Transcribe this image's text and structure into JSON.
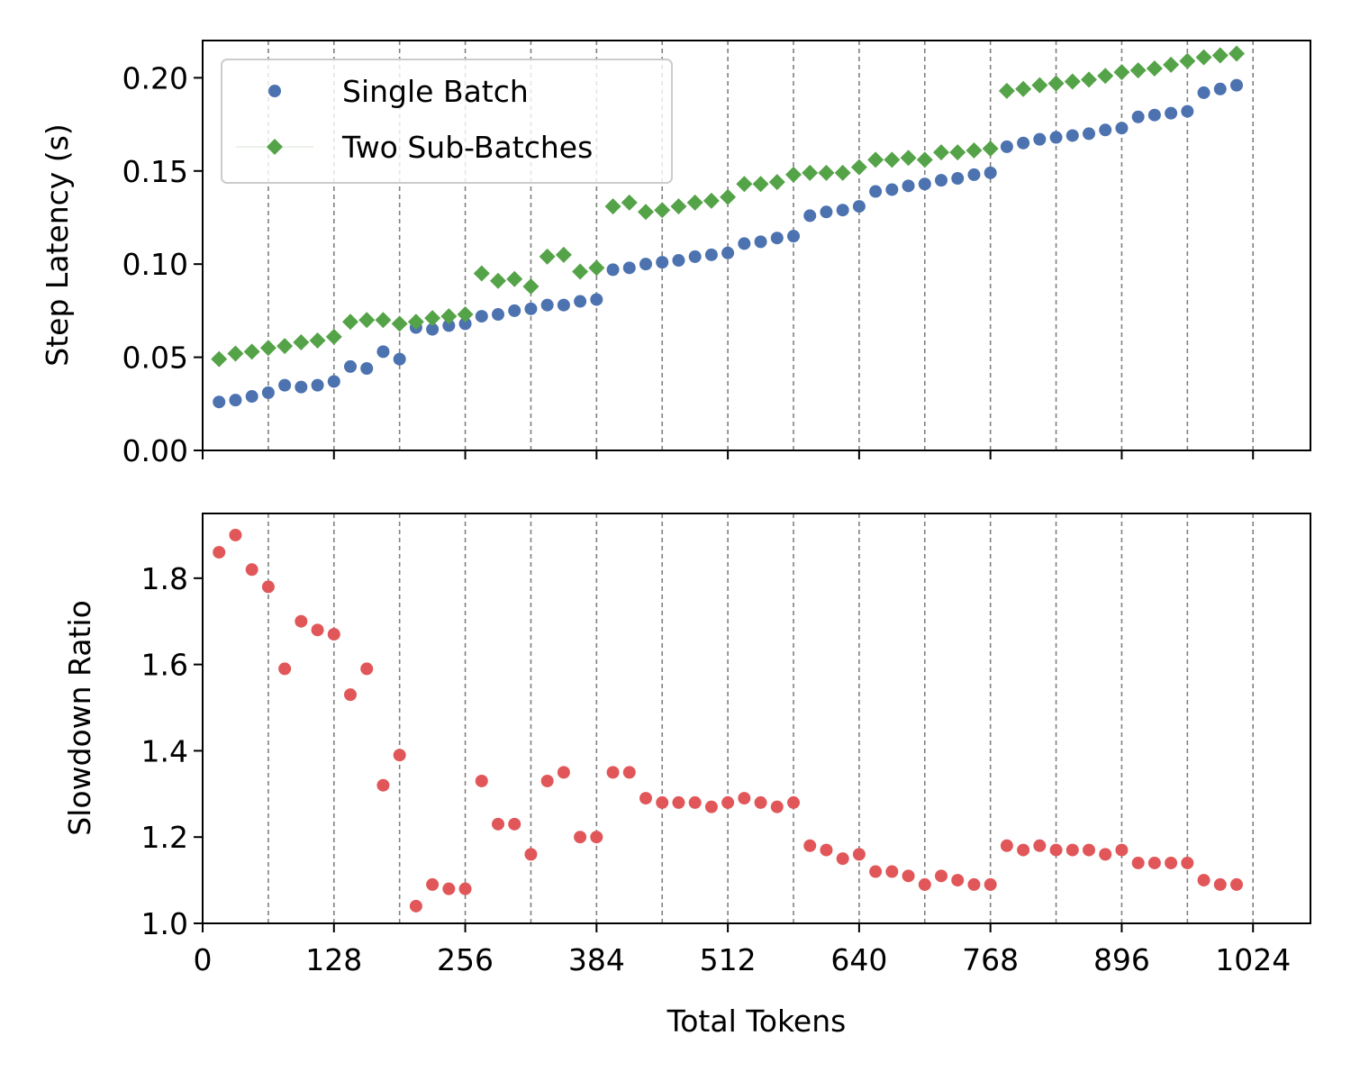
{
  "colors": {
    "single": "#4c72b0",
    "two": "#55a348",
    "ratio": "#e15759",
    "grid": "#808080",
    "legend_border": "#cccccc"
  },
  "chart_data": [
    {
      "type": "scatter",
      "ylabel": "Step Latency (s)",
      "ylim": [
        0,
        0.22
      ],
      "yticks": [
        "0.00",
        "0.05",
        "0.10",
        "0.15",
        "0.20"
      ],
      "xlim": [
        0,
        1080
      ],
      "grid": "vertical dashed lines every 64 tokens",
      "legend": {
        "placement": "upper-left",
        "entries": [
          "Single Batch",
          "Two Sub-Batches"
        ]
      },
      "x": [
        16,
        32,
        48,
        64,
        80,
        96,
        112,
        128,
        144,
        160,
        176,
        192,
        208,
        224,
        240,
        256,
        272,
        288,
        304,
        320,
        336,
        352,
        368,
        384,
        400,
        416,
        432,
        448,
        464,
        480,
        496,
        512,
        528,
        544,
        560,
        576,
        592,
        608,
        624,
        640,
        656,
        672,
        688,
        704,
        720,
        736,
        752,
        768,
        784,
        800,
        816,
        832,
        848,
        864,
        880,
        896,
        912,
        928,
        944,
        960,
        976,
        992,
        1008
      ],
      "series": [
        {
          "name": "Single Batch",
          "marker": "circle",
          "values": [
            0.026,
            0.027,
            0.029,
            0.031,
            0.035,
            0.034,
            0.035,
            0.037,
            0.045,
            0.044,
            0.053,
            0.049,
            0.066,
            0.065,
            0.067,
            0.068,
            0.072,
            0.073,
            0.075,
            0.076,
            0.078,
            0.078,
            0.08,
            0.081,
            0.097,
            0.098,
            0.1,
            0.101,
            0.102,
            0.104,
            0.105,
            0.106,
            0.111,
            0.112,
            0.114,
            0.115,
            0.126,
            0.128,
            0.129,
            0.131,
            0.139,
            0.14,
            0.142,
            0.143,
            0.145,
            0.146,
            0.148,
            0.149,
            0.163,
            0.165,
            0.167,
            0.168,
            0.169,
            0.17,
            0.172,
            0.173,
            0.179,
            0.18,
            0.181,
            0.182,
            0.192,
            0.194,
            0.196
          ]
        },
        {
          "name": "Two Sub-Batches",
          "marker": "diamond",
          "values": [
            0.049,
            0.052,
            0.053,
            0.055,
            0.056,
            0.058,
            0.059,
            0.061,
            0.069,
            0.07,
            0.07,
            0.068,
            0.069,
            0.071,
            0.072,
            0.073,
            0.095,
            0.091,
            0.092,
            0.088,
            0.104,
            0.105,
            0.096,
            0.098,
            0.131,
            0.133,
            0.128,
            0.129,
            0.131,
            0.133,
            0.134,
            0.136,
            0.143,
            0.143,
            0.144,
            0.148,
            0.149,
            0.149,
            0.149,
            0.152,
            0.156,
            0.156,
            0.157,
            0.156,
            0.16,
            0.16,
            0.161,
            0.162,
            0.193,
            0.194,
            0.196,
            0.197,
            0.198,
            0.199,
            0.201,
            0.203,
            0.204,
            0.205,
            0.207,
            0.209,
            0.211,
            0.212,
            0.213
          ]
        }
      ]
    },
    {
      "type": "scatter",
      "xlabel": "Total Tokens",
      "ylabel": "Slowdown Ratio",
      "ylim": [
        1.0,
        1.95
      ],
      "yticks": [
        "1.0",
        "1.2",
        "1.4",
        "1.6",
        "1.8"
      ],
      "xlim": [
        0,
        1080
      ],
      "xticks": [
        0,
        128,
        256,
        384,
        512,
        640,
        768,
        896,
        1024
      ],
      "xtick_labels": [
        "0",
        "128",
        "256",
        "384",
        "512",
        "640",
        "768",
        "896",
        "1024"
      ],
      "grid": "vertical dashed lines every 64 tokens",
      "x": [
        16,
        32,
        48,
        64,
        80,
        96,
        112,
        128,
        144,
        160,
        176,
        192,
        208,
        224,
        240,
        256,
        272,
        288,
        304,
        320,
        336,
        352,
        368,
        384,
        400,
        416,
        432,
        448,
        464,
        480,
        496,
        512,
        528,
        544,
        560,
        576,
        592,
        608,
        624,
        640,
        656,
        672,
        688,
        704,
        720,
        736,
        752,
        768,
        784,
        800,
        816,
        832,
        848,
        864,
        880,
        896,
        912,
        928,
        944,
        960,
        976,
        992,
        1008
      ],
      "series": [
        {
          "marker": "circle",
          "values": [
            1.86,
            1.9,
            1.82,
            1.78,
            1.59,
            1.7,
            1.68,
            1.67,
            1.53,
            1.59,
            1.32,
            1.39,
            1.04,
            1.09,
            1.08,
            1.08,
            1.33,
            1.23,
            1.23,
            1.16,
            1.33,
            1.35,
            1.2,
            1.2,
            1.35,
            1.35,
            1.29,
            1.28,
            1.28,
            1.28,
            1.27,
            1.28,
            1.29,
            1.28,
            1.27,
            1.28,
            1.18,
            1.17,
            1.15,
            1.16,
            1.12,
            1.12,
            1.11,
            1.09,
            1.11,
            1.1,
            1.09,
            1.09,
            1.18,
            1.17,
            1.18,
            1.17,
            1.17,
            1.17,
            1.16,
            1.17,
            1.14,
            1.14,
            1.14,
            1.14,
            1.1,
            1.09,
            1.09
          ]
        }
      ]
    }
  ]
}
